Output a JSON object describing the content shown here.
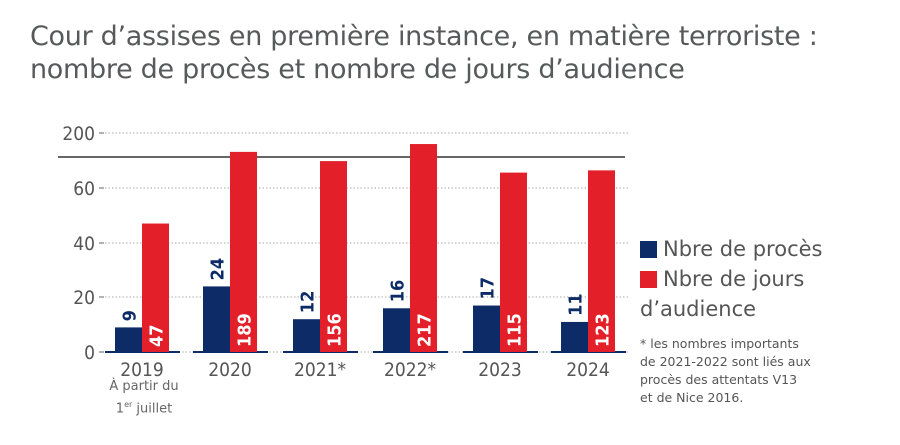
{
  "title": [
    "Cour d’assises en première instance, en matière terroriste :",
    "nombre de procès et nombre de jours d’audience"
  ],
  "chart_data": {
    "type": "bar",
    "categories": [
      "2019",
      "2020",
      "2021*",
      "2022*",
      "2023",
      "2024"
    ],
    "series": [
      {
        "name": "Nbre de procès",
        "values": [
          9,
          24,
          12,
          16,
          17,
          11
        ],
        "color": "#0d2b66"
      },
      {
        "name": "Nbre de jours d’audience",
        "values": [
          47,
          189,
          156,
          217,
          115,
          123
        ],
        "color": "#e3202a"
      }
    ],
    "y_ticks": [
      "0",
      "20",
      "40",
      "60",
      "200"
    ],
    "y_axis_break": "between 60 and 200",
    "grid": "dotted horizontal",
    "legend_position": "right",
    "category_note": {
      "2019": [
        "À partir du",
        "1",
        "er",
        " juillet"
      ]
    }
  },
  "legend": {
    "items": [
      "Nbre de procès",
      "Nbre de jours",
      "d’audience"
    ]
  },
  "footnote": [
    "* les nombres importants",
    "de 2021-2022 sont liés aux",
    "procès des attentats V13",
    "et de Nice 2016."
  ]
}
